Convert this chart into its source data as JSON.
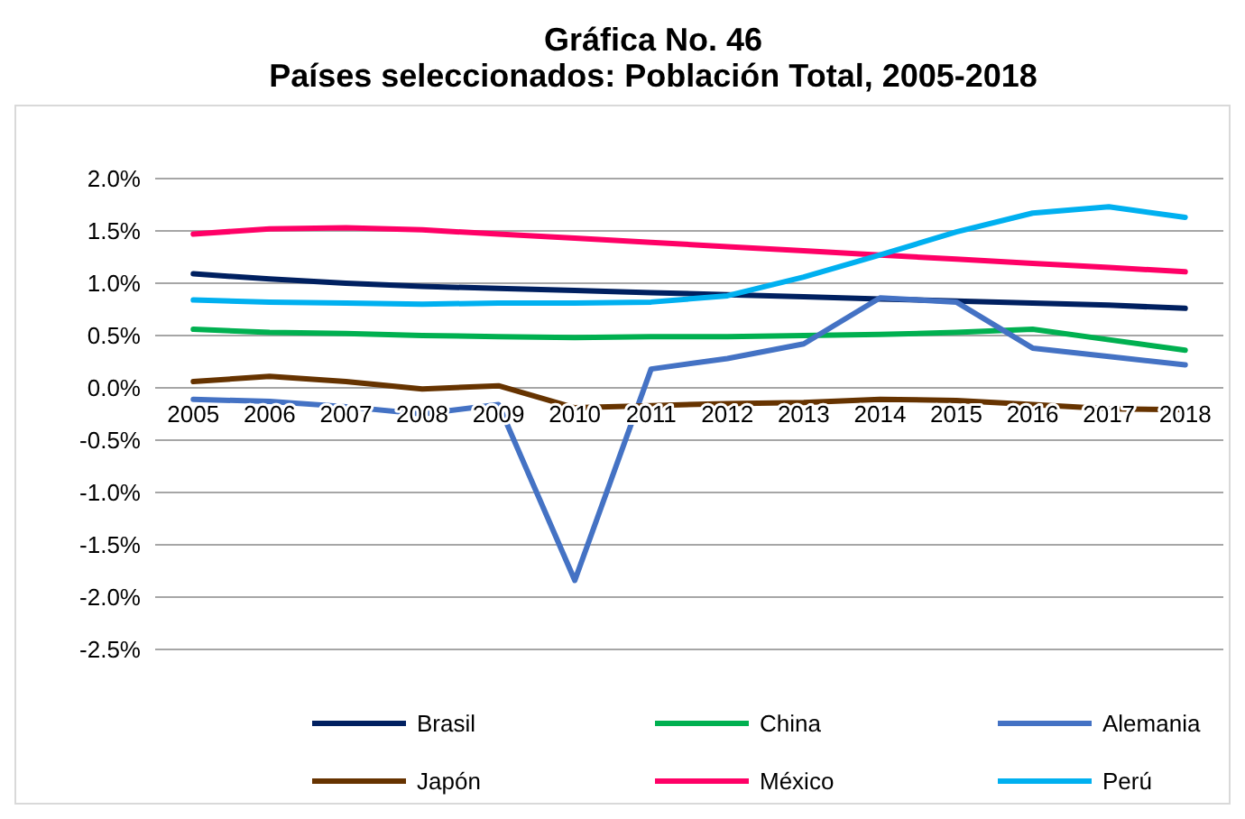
{
  "chart_data": {
    "type": "line",
    "title": "Gráfica No. 46\nPaíses seleccionados: Población Total, 2005-2018",
    "categories": [
      "2005",
      "2006",
      "2007",
      "2008",
      "2009",
      "2010",
      "2011",
      "2012",
      "2013",
      "2014",
      "2015",
      "2016",
      "2017",
      "2018"
    ],
    "series": [
      {
        "name": "Brasil",
        "color": "#002060",
        "values": [
          1.09,
          1.04,
          1.0,
          0.97,
          0.95,
          0.93,
          0.91,
          0.89,
          0.87,
          0.85,
          0.83,
          0.81,
          0.79,
          0.76
        ]
      },
      {
        "name": "China",
        "color": "#00b050",
        "values": [
          0.56,
          0.53,
          0.52,
          0.5,
          0.49,
          0.48,
          0.49,
          0.49,
          0.5,
          0.51,
          0.53,
          0.56,
          0.46,
          0.36
        ]
      },
      {
        "name": "Alemania",
        "color": "#4472c4",
        "values": [
          -0.11,
          -0.13,
          -0.18,
          -0.25,
          -0.16,
          -1.84,
          0.18,
          0.28,
          0.42,
          0.86,
          0.82,
          0.38,
          0.3,
          0.22
        ]
      },
      {
        "name": "Japón",
        "color": "#663300",
        "values": [
          0.06,
          0.11,
          0.06,
          -0.01,
          0.02,
          -0.19,
          -0.17,
          -0.15,
          -0.14,
          -0.11,
          -0.12,
          -0.16,
          -0.2,
          -0.21
        ]
      },
      {
        "name": "México",
        "color": "#ff0066",
        "values": [
          1.47,
          1.52,
          1.53,
          1.51,
          1.47,
          1.43,
          1.39,
          1.35,
          1.31,
          1.27,
          1.23,
          1.19,
          1.15,
          1.11
        ]
      },
      {
        "name": "Perú",
        "color": "#00b0f0",
        "values": [
          0.84,
          0.82,
          0.81,
          0.8,
          0.81,
          0.81,
          0.82,
          0.88,
          1.06,
          1.27,
          1.49,
          1.67,
          1.73,
          1.63
        ]
      }
    ],
    "ylim": [
      -2.5,
      2.0
    ],
    "yticks": [
      {
        "value": 2.0,
        "label": "2.0%"
      },
      {
        "value": 1.5,
        "label": "1.5%"
      },
      {
        "value": 1.0,
        "label": "1.0%"
      },
      {
        "value": 0.5,
        "label": "0.5%"
      },
      {
        "value": 0,
        "label": "0.0%"
      },
      {
        "value": -0.5,
        "label": "-0.5%"
      },
      {
        "value": -1.0,
        "label": "-1.0%"
      },
      {
        "value": -1.5,
        "label": "-1.5%"
      },
      {
        "value": -2.0,
        "label": "-2.0%"
      },
      {
        "value": -2.5,
        "label": "-2.5%"
      }
    ],
    "grid": "y",
    "legend": "bottom",
    "marker": "none",
    "line_style": "solid"
  }
}
